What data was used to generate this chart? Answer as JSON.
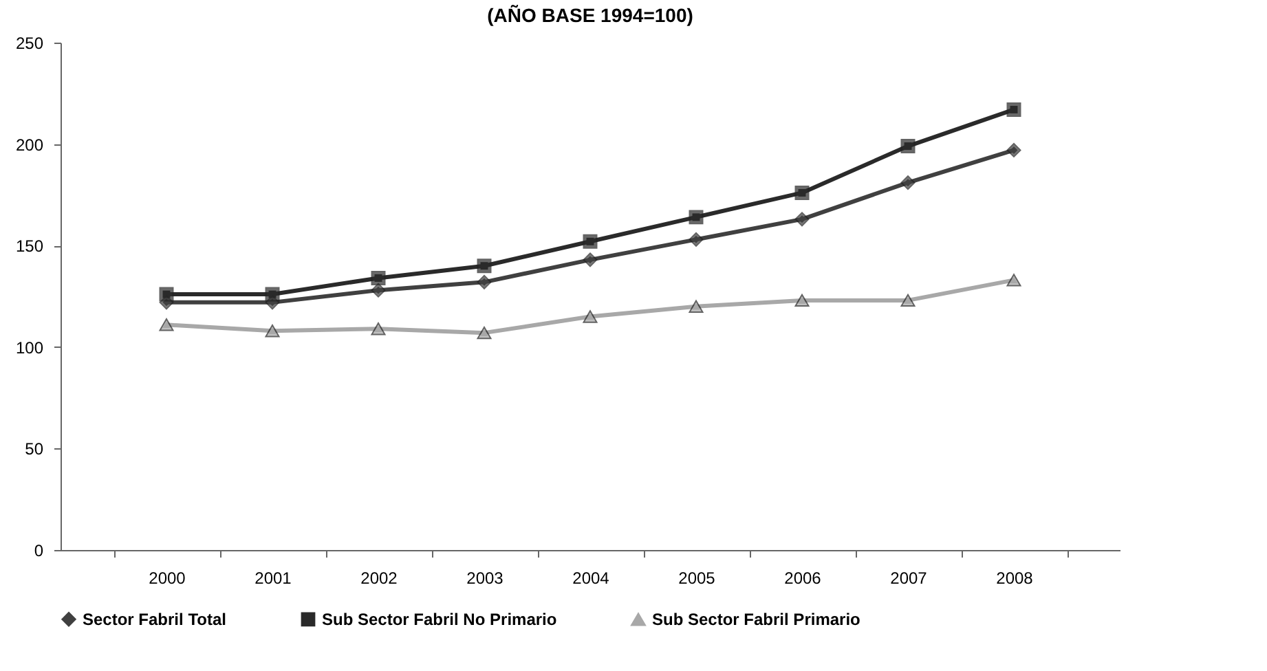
{
  "chart_data": {
    "type": "line",
    "title": "(AÑO BASE 1994=100)",
    "categories": [
      "2000",
      "2001",
      "2002",
      "2003",
      "2004",
      "2005",
      "2006",
      "2007",
      "2008"
    ],
    "series": [
      {
        "name": "Sector Fabril Total",
        "color": "#404040",
        "marker": "diamond",
        "values": [
          122,
          122,
          128,
          132,
          143,
          153,
          163,
          181,
          197
        ]
      },
      {
        "name": "Sub Sector Fabril No Primario",
        "color": "#2a2a2a",
        "marker": "square",
        "values": [
          126,
          126,
          134,
          140,
          152,
          164,
          176,
          199,
          217
        ]
      },
      {
        "name": "Sub Sector Fabril Primario",
        "color": "#a8a8a8",
        "marker": "triangle",
        "values": [
          111,
          108,
          109,
          107,
          115,
          120,
          123,
          123,
          133
        ]
      }
    ],
    "ylim": [
      0,
      250
    ],
    "yticks": [
      0,
      50,
      100,
      150,
      200,
      250
    ],
    "grid": false,
    "legend": "bottom"
  }
}
